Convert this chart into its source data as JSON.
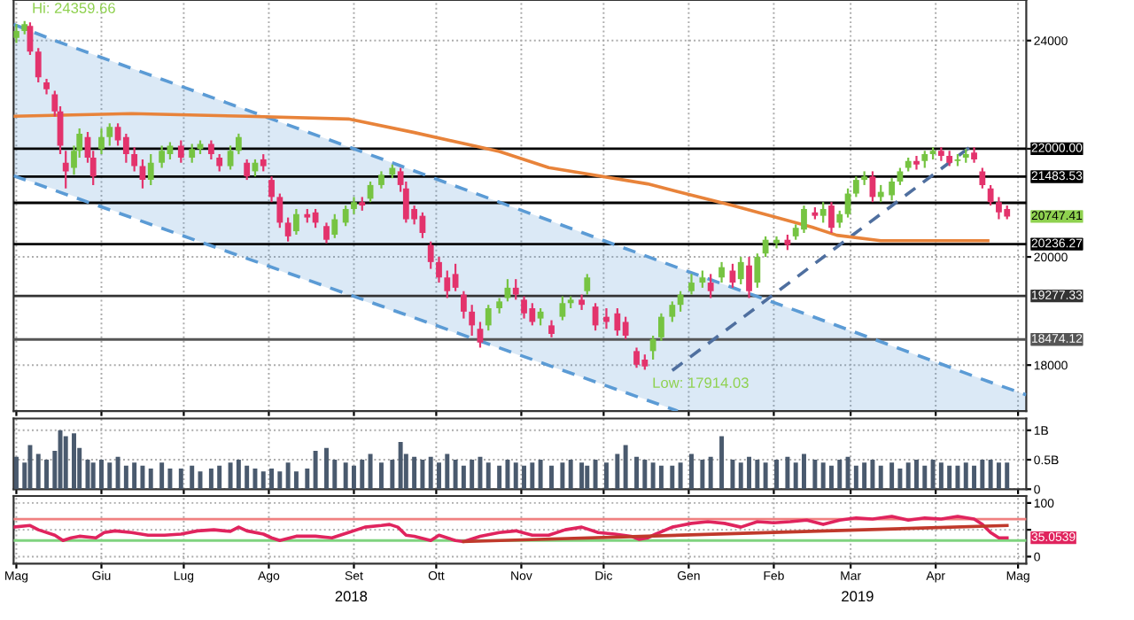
{
  "chart_data": [
    {
      "type": "candlestick",
      "x": [
        "2018-05-01",
        "2018-05-04",
        "2018-05-06",
        "2018-05-09",
        "2018-05-12",
        "2018-05-15",
        "2018-05-17",
        "2018-05-19",
        "2018-05-22",
        "2018-05-24",
        "2018-05-27",
        "2018-05-29",
        "2018-06-01",
        "2018-06-04",
        "2018-06-07",
        "2018-06-10",
        "2018-06-13",
        "2018-06-16",
        "2018-06-19",
        "2018-06-23",
        "2018-06-26",
        "2018-06-30",
        "2018-07-04",
        "2018-07-07",
        "2018-07-11",
        "2018-07-14",
        "2018-07-18",
        "2018-07-21",
        "2018-07-24",
        "2018-07-27",
        "2018-07-30",
        "2018-08-02",
        "2018-08-05",
        "2018-08-08",
        "2018-08-11",
        "2018-08-15",
        "2018-08-18",
        "2018-08-22",
        "2018-08-25",
        "2018-08-29",
        "2018-09-01",
        "2018-09-04",
        "2018-09-07",
        "2018-09-11",
        "2018-09-15",
        "2018-09-18",
        "2018-09-20",
        "2018-09-23",
        "2018-09-26",
        "2018-09-29",
        "2018-10-02",
        "2018-10-05",
        "2018-10-08",
        "2018-10-11",
        "2018-10-14",
        "2018-10-17",
        "2018-10-20",
        "2018-10-24",
        "2018-10-27",
        "2018-10-30",
        "2018-11-02",
        "2018-11-05",
        "2018-11-08",
        "2018-11-12",
        "2018-11-16",
        "2018-11-19",
        "2018-11-23",
        "2018-11-25",
        "2018-11-28",
        "2018-12-02",
        "2018-12-06",
        "2018-12-09",
        "2018-12-13",
        "2018-12-16",
        "2018-12-19",
        "2018-12-22",
        "2018-12-26",
        "2018-12-29",
        "2019-01-02",
        "2019-01-06",
        "2019-01-09",
        "2019-01-13",
        "2019-01-17",
        "2019-01-20",
        "2019-01-23",
        "2019-01-26",
        "2019-01-29",
        "2019-02-02",
        "2019-02-06",
        "2019-02-09",
        "2019-02-12",
        "2019-02-16",
        "2019-02-19",
        "2019-02-22",
        "2019-02-25",
        "2019-02-28",
        "2019-03-03",
        "2019-03-06",
        "2019-03-09",
        "2019-03-12",
        "2019-03-16",
        "2019-03-19",
        "2019-03-22",
        "2019-03-25",
        "2019-03-28",
        "2019-03-31",
        "2019-04-03",
        "2019-04-06",
        "2019-04-09",
        "2019-04-12",
        "2019-04-15",
        "2019-04-18",
        "2019-04-21",
        "2019-04-24",
        "2019-04-27"
      ],
      "ohlc": [
        [
          24051,
          24305,
          23956,
          24178
        ],
        [
          24178,
          24359.66,
          24115,
          24305
        ],
        [
          24273,
          24336,
          23735,
          23798
        ],
        [
          23798,
          23861,
          23228,
          23323
        ],
        [
          23228,
          23291,
          23007,
          23102
        ],
        [
          23007,
          23070,
          22595,
          22690
        ],
        [
          22690,
          22785,
          21899,
          22058
        ],
        [
          21741,
          21962,
          21266,
          21583
        ],
        [
          21646,
          22058,
          21519,
          21962
        ],
        [
          21962,
          22374,
          21836,
          22279
        ],
        [
          22216,
          22311,
          21741,
          21836
        ],
        [
          21836,
          21962,
          21329,
          21488
        ],
        [
          21994,
          22374,
          21899,
          22216
        ],
        [
          22216,
          22469,
          22058,
          22406
        ],
        [
          22406,
          22469,
          22058,
          22153
        ],
        [
          22216,
          22279,
          21741,
          21899
        ],
        [
          21899,
          22026,
          21583,
          21678
        ],
        [
          21678,
          21804,
          21266,
          21424
        ],
        [
          21424,
          21899,
          21329,
          21741
        ],
        [
          21741,
          22058,
          21646,
          21962
        ],
        [
          21899,
          22121,
          21804,
          22058
        ],
        [
          22058,
          22153,
          21741,
          21836
        ],
        [
          21836,
          22089,
          21741,
          21994
        ],
        [
          21994,
          22153,
          21899,
          22089
        ],
        [
          22089,
          22153,
          21804,
          21899
        ],
        [
          21836,
          21899,
          21583,
          21678
        ],
        [
          21678,
          22058,
          21614,
          21962
        ],
        [
          21962,
          22279,
          21899,
          22216
        ],
        [
          21741,
          21804,
          21424,
          21488
        ],
        [
          21583,
          21804,
          21488,
          21741
        ],
        [
          21804,
          21899,
          21583,
          21678
        ],
        [
          21424,
          21488,
          21013,
          21108
        ],
        [
          21108,
          21171,
          20538,
          20633
        ],
        [
          20633,
          20728,
          20285,
          20380
        ],
        [
          20475,
          20886,
          20411,
          20791
        ],
        [
          20791,
          20886,
          20633,
          20728
        ],
        [
          20823,
          20886,
          20538,
          20633
        ],
        [
          20570,
          20633,
          20253,
          20317
        ],
        [
          20411,
          20791,
          20348,
          20696
        ],
        [
          20633,
          20950,
          20570,
          20886
        ],
        [
          20886,
          21108,
          20791,
          21013
        ],
        [
          21013,
          21108,
          20855,
          20950
        ],
        [
          21076,
          21393,
          21013,
          21329
        ],
        [
          21329,
          21583,
          21266,
          21519
        ],
        [
          21519,
          21709,
          21456,
          21646
        ],
        [
          21583,
          21646,
          21203,
          21329
        ],
        [
          21266,
          21393,
          20633,
          20696
        ],
        [
          20886,
          20950,
          20601,
          20696
        ],
        [
          20760,
          20823,
          20348,
          20443
        ],
        [
          20221,
          20285,
          19779,
          19905
        ],
        [
          19905,
          20000,
          19525,
          19620
        ],
        [
          19620,
          19747,
          19240,
          19367
        ],
        [
          19684,
          19873,
          19367,
          19430
        ],
        [
          19304,
          19367,
          18861,
          18988
        ],
        [
          18988,
          19114,
          18544,
          18734
        ],
        [
          18671,
          18798,
          18323,
          18418
        ],
        [
          18734,
          19114,
          18639,
          19051
        ],
        [
          19051,
          19240,
          18956,
          19177
        ],
        [
          19240,
          19589,
          19177,
          19430
        ],
        [
          19430,
          19589,
          19209,
          19304
        ],
        [
          19209,
          19272,
          18861,
          18956
        ],
        [
          19051,
          19145,
          18734,
          18798
        ],
        [
          18861,
          19051,
          18734,
          18988
        ],
        [
          18734,
          18829,
          18513,
          18576
        ],
        [
          18893,
          19272,
          18829,
          19145
        ],
        [
          19145,
          19272,
          19051,
          19209
        ],
        [
          19209,
          19304,
          19019,
          19114
        ],
        [
          19367,
          19684,
          19304,
          19620
        ],
        [
          19082,
          19145,
          18639,
          18734
        ],
        [
          18893,
          19051,
          18671,
          18798
        ],
        [
          18956,
          19051,
          18544,
          18639
        ],
        [
          18798,
          18893,
          18481,
          18544
        ],
        [
          18259,
          18323,
          17950,
          18006
        ],
        [
          18101,
          18196,
          17914.03,
          17975
        ],
        [
          18259,
          18544,
          18101,
          18481
        ],
        [
          18513,
          18956,
          18449,
          18893
        ],
        [
          18893,
          19177,
          18798,
          19114
        ],
        [
          19114,
          19367,
          18988,
          19304
        ],
        [
          19367,
          19684,
          19304,
          19525
        ],
        [
          19525,
          19747,
          19430,
          19620
        ],
        [
          19525,
          19684,
          19240,
          19367
        ],
        [
          19620,
          19905,
          19525,
          19810
        ],
        [
          19747,
          19873,
          19430,
          19525
        ],
        [
          19589,
          20000,
          19494,
          19905
        ],
        [
          19842,
          20000,
          19240,
          19367
        ],
        [
          19525,
          20063,
          19430,
          20000
        ],
        [
          20063,
          20380,
          20000,
          20317
        ],
        [
          20253,
          20380,
          20158,
          20317
        ],
        [
          20317,
          20411,
          20127,
          20221
        ],
        [
          20380,
          20601,
          20317,
          20538
        ],
        [
          20506,
          20950,
          20443,
          20886
        ],
        [
          20823,
          20918,
          20696,
          20760
        ],
        [
          20760,
          21013,
          20633,
          20886
        ],
        [
          20950,
          21013,
          20443,
          20538
        ],
        [
          20633,
          20855,
          20538,
          20791
        ],
        [
          20791,
          21266,
          20728,
          21171
        ],
        [
          21171,
          21488,
          21108,
          21424
        ],
        [
          21424,
          21583,
          21329,
          21488
        ],
        [
          21488,
          21583,
          21013,
          21108
        ],
        [
          21108,
          21329,
          21013,
          21203
        ],
        [
          21140,
          21456,
          21045,
          21393
        ],
        [
          21393,
          21646,
          21329,
          21583
        ],
        [
          21646,
          21836,
          21583,
          21773
        ],
        [
          21773,
          21867,
          21614,
          21709
        ],
        [
          21773,
          21962,
          21646,
          21899
        ],
        [
          21899,
          22026,
          21804,
          21962
        ],
        [
          21962,
          22026,
          21773,
          21867
        ],
        [
          21867,
          21962,
          21678,
          21741
        ],
        [
          21773,
          21899,
          21678,
          21804
        ],
        [
          21836,
          21994,
          21741,
          21899
        ],
        [
          21931,
          22026,
          21741,
          21804
        ],
        [
          21583,
          21646,
          21266,
          21329
        ],
        [
          21266,
          21329,
          20950,
          21013
        ],
        [
          21013,
          21108,
          20696,
          20823
        ],
        [
          20886,
          20950,
          20696,
          20747.41
        ]
      ],
      "colors": [
        "#76c442",
        "#76c442",
        "#e3336c",
        "#e3336c",
        "#e3336c",
        "#e3336c",
        "#e3336c",
        "#e3336c",
        "#76c442",
        "#76c442",
        "#e3336c",
        "#e3336c",
        "#76c442",
        "#76c442",
        "#e3336c",
        "#e3336c",
        "#e3336c",
        "#e3336c",
        "#76c442",
        "#76c442",
        "#76c442",
        "#e3336c",
        "#76c442",
        "#76c442",
        "#e3336c",
        "#e3336c",
        "#76c442",
        "#76c442",
        "#e3336c",
        "#76c442",
        "#e3336c",
        "#e3336c",
        "#e3336c",
        "#e3336c",
        "#76c442",
        "#e3336c",
        "#e3336c",
        "#e3336c",
        "#76c442",
        "#76c442",
        "#76c442",
        "#e3336c",
        "#76c442",
        "#76c442",
        "#76c442",
        "#e3336c",
        "#e3336c",
        "#e3336c",
        "#e3336c",
        "#e3336c",
        "#e3336c",
        "#e3336c",
        "#e3336c",
        "#e3336c",
        "#e3336c",
        "#e3336c",
        "#76c442",
        "#76c442",
        "#76c442",
        "#e3336c",
        "#e3336c",
        "#e3336c",
        "#76c442",
        "#e3336c",
        "#76c442",
        "#76c442",
        "#e3336c",
        "#76c442",
        "#e3336c",
        "#e3336c",
        "#e3336c",
        "#e3336c",
        "#e3336c",
        "#e3336c",
        "#76c442",
        "#76c442",
        "#76c442",
        "#76c442",
        "#76c442",
        "#76c442",
        "#e3336c",
        "#76c442",
        "#e3336c",
        "#76c442",
        "#e3336c",
        "#76c442",
        "#76c442",
        "#76c442",
        "#e3336c",
        "#76c442",
        "#76c442",
        "#e3336c",
        "#76c442",
        "#e3336c",
        "#76c442",
        "#76c442",
        "#76c442",
        "#76c442",
        "#e3336c",
        "#76c442",
        "#76c442",
        "#76c442",
        "#76c442",
        "#e3336c",
        "#76c442",
        "#76c442",
        "#e3336c",
        "#e3336c",
        "#76c442",
        "#76c442",
        "#e3336c",
        "#e3336c",
        "#e3336c",
        "#e3336c",
        "#e3336c"
      ],
      "series": [
        {
          "type": "line",
          "color": "#5b9bd5",
          "line_style": "dashed",
          "x": [
            "2018-04-30",
            "2018-05-15",
            "2018-09-01",
            "2018-12-20",
            "2018-12-28",
            "2019-02-15",
            "2019-04-20",
            "2019-05-04"
          ],
          "lower": [
            21500,
            21250,
            19250,
            17300,
            17150,
            17150,
            17150,
            17150
          ],
          "upper": [
            24300,
            24000,
            22000,
            19950,
            19800,
            18900,
            17700,
            17450
          ],
          "values": [
            24300,
            24000,
            22000,
            19950,
            19800,
            18900,
            17700,
            17450
          ]
        },
        {
          "type": "line",
          "color": "#5b9bd5",
          "line_style": "dashed",
          "x": [
            "2018-04-30",
            "2018-12-28"
          ],
          "values": [
            21500,
            17150
          ]
        },
        {
          "type": "line",
          "color": "#4f6f9f",
          "line_style": "dashed",
          "x": [
            "2018-12-26",
            "2019-04-14"
          ],
          "values": [
            17900,
            22050
          ]
        },
        {
          "type": "line",
          "color": "#e8833a",
          "line_style": "solid",
          "x": [
            "2018-04-30",
            "2018-06-12",
            "2018-07-24",
            "2018-08-30",
            "2018-09-23",
            "2018-10-24",
            "2018-11-11",
            "2018-12-17",
            "2019-01-17",
            "2019-02-15",
            "2019-02-24",
            "2019-03-12",
            "2019-04-06",
            "2019-04-20"
          ],
          "values": [
            22600,
            22650,
            22600,
            22550,
            22300,
            21950,
            21650,
            21350,
            20950,
            20550,
            20400,
            20300,
            20300,
            20300
          ]
        }
      ],
      "ref_lines": [
        {
          "axis": "y",
          "value": 22000,
          "label": "22000.00",
          "color": "#000000"
        },
        {
          "axis": "y",
          "value": 21483.53,
          "label": "21483.53",
          "color": "#000000"
        },
        {
          "axis": "y",
          "value": 21000,
          "label": null,
          "color": "#000000"
        },
        {
          "axis": "y",
          "value": 20236.27,
          "label": "20236.27",
          "color": "#000000"
        },
        {
          "axis": "y",
          "value": 19277.33,
          "label": "19277.33",
          "color": "#333333"
        },
        {
          "axis": "y",
          "value": 18474.12,
          "label": "18474.12",
          "color": "#555555"
        }
      ],
      "annotations": [
        "Hi: 24359.66",
        "Low: 17914.03",
        "20747.41"
      ],
      "xlim": [
        "2018-04-30",
        "2019-05-04"
      ],
      "xticks": [
        {
          "value": "2018-05-01",
          "label": null
        },
        {
          "value": "2018-06-01",
          "label": null
        },
        {
          "value": "2018-07-01",
          "label": null
        },
        {
          "value": "2018-08-01",
          "label": null
        },
        {
          "value": "2018-09-01",
          "label": null
        },
        {
          "value": "2018-10-01",
          "label": null
        },
        {
          "value": "2018-11-01",
          "label": null
        },
        {
          "value": "2018-12-01",
          "label": null
        },
        {
          "value": "2019-01-01",
          "label": null
        },
        {
          "value": "2019-02-01",
          "label": null
        },
        {
          "value": "2019-03-01",
          "label": null
        },
        {
          "value": "2019-04-01",
          "label": null
        },
        {
          "value": "2019-05-01",
          "label": null
        }
      ],
      "ylim": [
        17150,
        24750
      ],
      "yticks": [
        18000,
        20000,
        {
          "value": 22000,
          "label": null
        },
        24000
      ],
      "grid": true,
      "tick_labels": "y"
    },
    {
      "type": "bar",
      "x": [
        "2018-05-01",
        "2018-05-04",
        "2018-05-06",
        "2018-05-09",
        "2018-05-12",
        "2018-05-15",
        "2018-05-17",
        "2018-05-19",
        "2018-05-22",
        "2018-05-24",
        "2018-05-27",
        "2018-05-29",
        "2018-06-01",
        "2018-06-04",
        "2018-06-07",
        "2018-06-10",
        "2018-06-13",
        "2018-06-16",
        "2018-06-19",
        "2018-06-23",
        "2018-06-26",
        "2018-06-30",
        "2018-07-04",
        "2018-07-07",
        "2018-07-11",
        "2018-07-14",
        "2018-07-18",
        "2018-07-21",
        "2018-07-24",
        "2018-07-27",
        "2018-07-30",
        "2018-08-02",
        "2018-08-05",
        "2018-08-08",
        "2018-08-11",
        "2018-08-15",
        "2018-08-18",
        "2018-08-22",
        "2018-08-25",
        "2018-08-29",
        "2018-09-01",
        "2018-09-04",
        "2018-09-07",
        "2018-09-11",
        "2018-09-15",
        "2018-09-18",
        "2018-09-20",
        "2018-09-23",
        "2018-09-26",
        "2018-09-29",
        "2018-10-02",
        "2018-10-05",
        "2018-10-08",
        "2018-10-11",
        "2018-10-14",
        "2018-10-17",
        "2018-10-20",
        "2018-10-24",
        "2018-10-27",
        "2018-10-30",
        "2018-11-02",
        "2018-11-05",
        "2018-11-08",
        "2018-11-12",
        "2018-11-16",
        "2018-11-19",
        "2018-11-23",
        "2018-11-25",
        "2018-11-28",
        "2018-12-02",
        "2018-12-06",
        "2018-12-09",
        "2018-12-13",
        "2018-12-16",
        "2018-12-19",
        "2018-12-22",
        "2018-12-26",
        "2018-12-29",
        "2019-01-02",
        "2019-01-06",
        "2019-01-09",
        "2019-01-13",
        "2019-01-17",
        "2019-01-20",
        "2019-01-23",
        "2019-01-26",
        "2019-01-29",
        "2019-02-02",
        "2019-02-06",
        "2019-02-09",
        "2019-02-12",
        "2019-02-16",
        "2019-02-19",
        "2019-02-22",
        "2019-02-25",
        "2019-02-28",
        "2019-03-03",
        "2019-03-06",
        "2019-03-09",
        "2019-03-12",
        "2019-03-16",
        "2019-03-19",
        "2019-03-22",
        "2019-03-25",
        "2019-03-28",
        "2019-03-31",
        "2019-04-03",
        "2019-04-06",
        "2019-04-09",
        "2019-04-12",
        "2019-04-15",
        "2019-04-18",
        "2019-04-21",
        "2019-04-24",
        "2019-04-27"
      ],
      "values": [
        0.55,
        0.45,
        0.75,
        0.6,
        0.5,
        0.65,
        1.0,
        0.9,
        0.95,
        0.7,
        0.5,
        0.45,
        0.5,
        0.45,
        0.55,
        0.4,
        0.45,
        0.4,
        0.35,
        0.45,
        0.35,
        0.35,
        0.4,
        0.3,
        0.35,
        0.4,
        0.45,
        0.5,
        0.4,
        0.35,
        0.3,
        0.35,
        0.3,
        0.45,
        0.3,
        0.35,
        0.65,
        0.7,
        0.5,
        0.45,
        0.4,
        0.5,
        0.6,
        0.45,
        0.5,
        0.8,
        0.6,
        0.55,
        0.5,
        0.55,
        0.45,
        0.6,
        0.5,
        0.4,
        0.5,
        0.55,
        0.45,
        0.4,
        0.5,
        0.45,
        0.4,
        0.45,
        0.5,
        0.4,
        0.45,
        0.5,
        0.45,
        0.4,
        0.5,
        0.45,
        0.6,
        0.75,
        0.55,
        0.5,
        0.45,
        0.4,
        0.4,
        0.45,
        0.6,
        0.5,
        0.55,
        0.9,
        0.5,
        0.45,
        0.55,
        0.5,
        0.45,
        0.5,
        0.55,
        0.45,
        0.6,
        0.5,
        0.45,
        0.4,
        0.5,
        0.55,
        0.4,
        0.45,
        0.5,
        0.4,
        0.45,
        0.35,
        0.45,
        0.5,
        0.4,
        0.5,
        0.45,
        0.4,
        0.4,
        0.45,
        0.4,
        0.5,
        0.5,
        0.45,
        0.45
      ],
      "color": "#4a5a6e",
      "xlim": [
        "2018-04-30",
        "2019-05-04"
      ],
      "xticks": [
        {
          "value": "2018-05-01",
          "label": null
        },
        {
          "value": "2018-06-01",
          "label": null
        },
        {
          "value": "2018-07-01",
          "label": null
        },
        {
          "value": "2018-08-01",
          "label": null
        },
        {
          "value": "2018-09-01",
          "label": null
        },
        {
          "value": "2018-10-01",
          "label": null
        },
        {
          "value": "2018-11-01",
          "label": null
        },
        {
          "value": "2018-12-01",
          "label": null
        },
        {
          "value": "2019-01-01",
          "label": null
        },
        {
          "value": "2019-02-01",
          "label": null
        },
        {
          "value": "2019-03-01",
          "label": null
        },
        {
          "value": "2019-04-01",
          "label": null
        },
        {
          "value": "2019-05-01",
          "label": null
        }
      ],
      "ylim": [
        0,
        1.2
      ],
      "yticks": [
        0,
        {
          "value": 0.5,
          "label": "0.5B"
        },
        {
          "value": 1,
          "label": "1B"
        }
      ],
      "grid": true,
      "tick_labels": "y"
    },
    {
      "type": "line",
      "series": [
        {
          "color": "#e0245e",
          "x": [
            "2018-04-30",
            "2018-05-06",
            "2018-05-09",
            "2018-05-15",
            "2018-05-18",
            "2018-05-21",
            "2018-05-24",
            "2018-05-30",
            "2018-06-02",
            "2018-06-06",
            "2018-06-12",
            "2018-06-18",
            "2018-06-24",
            "2018-06-30",
            "2018-07-06",
            "2018-07-12",
            "2018-07-18",
            "2018-07-21",
            "2018-07-24",
            "2018-07-30",
            "2018-08-02",
            "2018-08-05",
            "2018-08-11",
            "2018-08-18",
            "2018-08-24",
            "2018-08-30",
            "2018-09-05",
            "2018-09-11",
            "2018-09-14",
            "2018-09-17",
            "2018-09-20",
            "2018-09-23",
            "2018-09-29",
            "2018-10-02",
            "2018-10-05",
            "2018-10-08",
            "2018-10-11",
            "2018-10-17",
            "2018-10-24",
            "2018-10-30",
            "2018-11-05",
            "2018-11-11",
            "2018-11-17",
            "2018-11-23",
            "2018-11-29",
            "2018-12-05",
            "2018-12-11",
            "2018-12-14",
            "2018-12-17",
            "2018-12-20",
            "2018-12-26",
            "2019-01-02",
            "2019-01-08",
            "2019-01-14",
            "2019-01-20",
            "2019-01-26",
            "2019-02-01",
            "2019-02-07",
            "2019-02-13",
            "2019-02-19",
            "2019-02-25",
            "2019-03-03",
            "2019-03-09",
            "2019-03-16",
            "2019-03-22",
            "2019-03-28",
            "2019-04-03",
            "2019-04-09",
            "2019-04-15",
            "2019-04-18",
            "2019-04-21",
            "2019-04-24",
            "2019-04-27"
          ],
          "values": [
            55,
            58,
            50,
            40,
            30,
            35,
            38,
            35,
            45,
            48,
            45,
            40,
            40,
            42,
            48,
            50,
            47,
            55,
            48,
            42,
            35,
            30,
            38,
            38,
            35,
            45,
            55,
            58,
            60,
            55,
            40,
            38,
            30,
            40,
            35,
            30,
            28,
            38,
            45,
            48,
            40,
            40,
            50,
            55,
            45,
            42,
            38,
            32,
            35,
            42,
            55,
            62,
            65,
            62,
            55,
            65,
            63,
            65,
            68,
            60,
            68,
            72,
            70,
            75,
            68,
            72,
            70,
            75,
            70,
            60,
            45,
            35,
            35.0539
          ]
        },
        {
          "color": "#c0392b",
          "x": [
            "2018-10-11",
            "2019-04-27"
          ],
          "values": [
            28,
            58
          ]
        }
      ],
      "ref_lines": [
        {
          "axis": "y",
          "value": 70,
          "label": null,
          "color": "#f08080"
        },
        {
          "axis": "y",
          "value": 30,
          "label": null,
          "color": "#7fd37f"
        }
      ],
      "annotations": [
        "35.0539",
        "2018",
        "2019"
      ],
      "xlim": [
        "2018-04-30",
        "2019-05-04"
      ],
      "xticks": [
        {
          "value": "2018-05-01",
          "label": "Mag"
        },
        {
          "value": "2018-06-01",
          "label": "Giu"
        },
        {
          "value": "2018-07-01",
          "label": "Lug"
        },
        {
          "value": "2018-08-01",
          "label": "Ago"
        },
        {
          "value": "2018-09-01",
          "label": "Set"
        },
        {
          "value": "2018-10-01",
          "label": "Ott"
        },
        {
          "value": "2018-11-01",
          "label": "Nov"
        },
        {
          "value": "2018-12-01",
          "label": "Dic"
        },
        {
          "value": "2019-01-01",
          "label": "Gen"
        },
        {
          "value": "2019-02-01",
          "label": "Feb"
        },
        {
          "value": "2019-03-01",
          "label": "Mar"
        },
        {
          "value": "2019-04-01",
          "label": "Apr"
        },
        {
          "value": "2019-05-01",
          "label": "Mag"
        }
      ],
      "ylim": [
        -13,
        113
      ],
      "yticks": [
        0,
        {
          "value": 50,
          "label": null
        },
        100
      ],
      "grid": true
    }
  ]
}
